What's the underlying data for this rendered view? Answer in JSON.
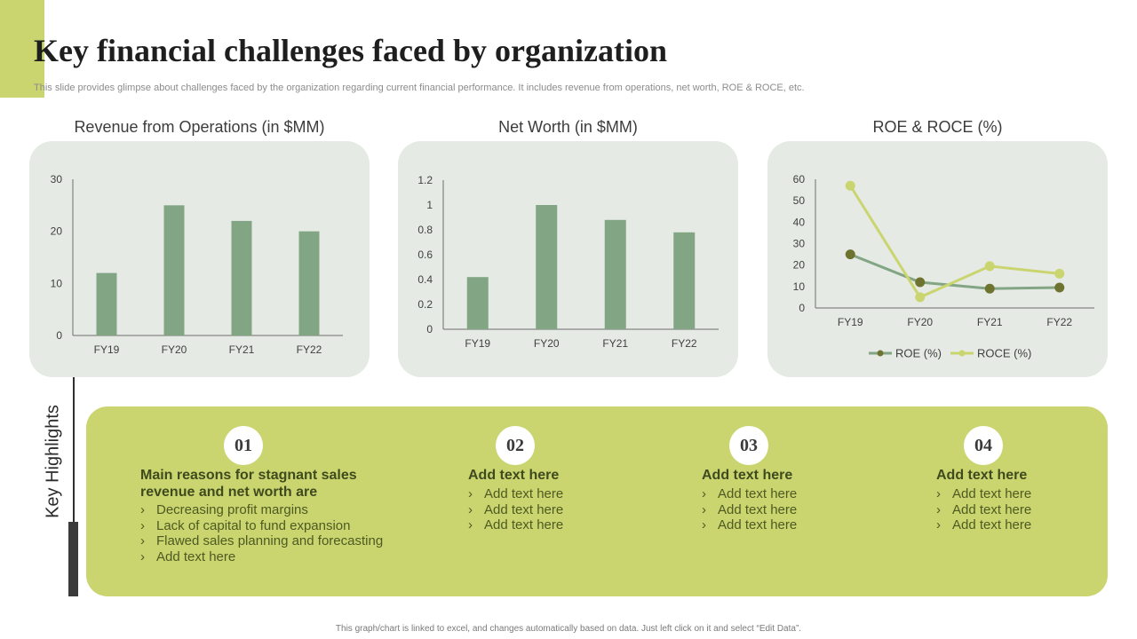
{
  "slide": {
    "title": "Key financial challenges faced by organization",
    "subtitle": "This slide provides glimpse about challenges faced by the organization regarding current financial performance. It includes revenue from operations, net worth, ROE & ROCE, etc.",
    "footer": "This graph/chart is linked to excel, and changes automatically based on data. Just left click on it and select “Edit Data”."
  },
  "colors": {
    "accent": "#cad56f",
    "panel_bg": "#e5eae4",
    "bar": "#82a584",
    "roe_line": "#82a584",
    "roe_marker": "#6e7430",
    "roce_line": "#cad56f"
  },
  "chart_data": [
    {
      "type": "bar",
      "title": "Revenue from Operations (in $MM)",
      "categories": [
        "FY19",
        "FY20",
        "FY21",
        "FY22"
      ],
      "values": [
        12,
        25,
        22,
        20
      ],
      "ylim": [
        0,
        30
      ],
      "yticks": [
        "0",
        "10",
        "20",
        "30"
      ],
      "xlabel": "",
      "ylabel": ""
    },
    {
      "type": "bar",
      "title": "Net Worth (in $MM)",
      "categories": [
        "FY19",
        "FY20",
        "FY21",
        "FY22"
      ],
      "values": [
        0.42,
        1.0,
        0.88,
        0.78
      ],
      "ylim": [
        0,
        1.2
      ],
      "yticks": [
        "0",
        "0.2",
        "0.4",
        "0.6",
        "0.8",
        "1",
        "1.2"
      ],
      "xlabel": "",
      "ylabel": ""
    },
    {
      "type": "line",
      "title": "ROE & ROCE (%)",
      "categories": [
        "FY19",
        "FY20",
        "FY21",
        "FY22"
      ],
      "series": [
        {
          "name": "ROE (%)",
          "values": [
            25,
            12,
            9,
            9.5
          ]
        },
        {
          "name": "ROCE (%)",
          "values": [
            57,
            5,
            19.5,
            16
          ]
        }
      ],
      "ylim": [
        0,
        60
      ],
      "yticks": [
        "0",
        "10",
        "20",
        "30",
        "40",
        "50",
        "60"
      ],
      "legend": "bottom",
      "xlabel": "",
      "ylabel": ""
    }
  ],
  "highlights": {
    "label": "Key Highlights",
    "items": [
      {
        "number": "01",
        "heading": "Main reasons for stagnant sales revenue and net worth are",
        "bullets": [
          "Decreasing profit margins",
          "Lack of capital to fund expansion",
          "Flawed sales planning and forecasting",
          "Add text here"
        ]
      },
      {
        "number": "02",
        "heading": "Add text here",
        "bullets": [
          "Add text here",
          "Add text here",
          "Add text here"
        ]
      },
      {
        "number": "03",
        "heading": "Add text here",
        "bullets": [
          "Add text here",
          "Add text here",
          "Add text here"
        ]
      },
      {
        "number": "04",
        "heading": "Add text here",
        "bullets": [
          "Add text here",
          "Add text here",
          "Add text here"
        ]
      }
    ]
  }
}
